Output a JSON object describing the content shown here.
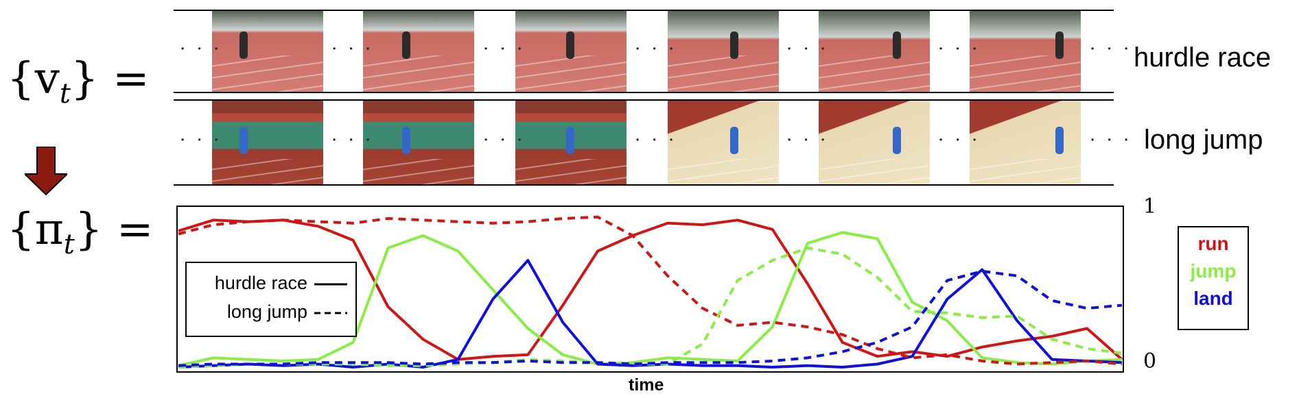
{
  "math": {
    "v_label": "{v",
    "v_sub": "t",
    "v_close": "} =",
    "pi_label": "{π",
    "pi_sub": "t",
    "pi_close": "} ="
  },
  "rows": [
    {
      "label": "hurdle race",
      "theme": "track-red"
    },
    {
      "label": "long jump",
      "theme": "track-green"
    }
  ],
  "ellipsis": "· · ·",
  "chart_data": {
    "type": "line",
    "xlabel": "time",
    "ylim": [
      0,
      1
    ],
    "y_tick_labels": [
      "1",
      "0"
    ],
    "x": [
      0,
      1,
      2,
      3,
      4,
      5,
      6,
      7,
      8,
      9,
      10,
      11,
      12,
      13,
      14,
      15,
      16,
      17,
      18,
      19,
      20,
      21,
      22,
      23,
      24,
      25,
      26,
      27
    ],
    "line_styles": [
      {
        "label": "hurdle race",
        "dash": "solid"
      },
      {
        "label": "long jump",
        "dash": "dashed"
      }
    ],
    "classes": [
      {
        "label": "run",
        "color": "#d11414"
      },
      {
        "label": "jump",
        "color": "#88ee44"
      },
      {
        "label": "land",
        "color": "#1010dd"
      }
    ],
    "series": [
      {
        "cls": "run",
        "dash": "solid",
        "values": [
          0.88,
          0.95,
          0.94,
          0.95,
          0.91,
          0.82,
          0.39,
          0.18,
          0.05,
          0.07,
          0.08,
          0.4,
          0.75,
          0.85,
          0.93,
          0.92,
          0.95,
          0.89,
          0.54,
          0.16,
          0.07,
          0.1,
          0.07,
          0.13,
          0.17,
          0.2,
          0.25,
          0.05
        ]
      },
      {
        "cls": "jump",
        "dash": "solid",
        "values": [
          0.01,
          0.06,
          0.05,
          0.04,
          0.05,
          0.16,
          0.77,
          0.85,
          0.75,
          0.5,
          0.25,
          0.08,
          0.02,
          0.03,
          0.06,
          0.05,
          0.04,
          0.26,
          0.8,
          0.87,
          0.83,
          0.42,
          0.3,
          0.06,
          0.03,
          0.02,
          0.04,
          0.05
        ]
      },
      {
        "cls": "land",
        "dash": "solid",
        "values": [
          0.0,
          0.01,
          0.02,
          0.01,
          0.02,
          0.0,
          0.02,
          0.0,
          0.05,
          0.44,
          0.69,
          0.29,
          0.02,
          0.01,
          0.02,
          0.01,
          0.01,
          0.0,
          0.01,
          0.0,
          0.02,
          0.07,
          0.44,
          0.63,
          0.3,
          0.05,
          0.04,
          0.03
        ]
      },
      {
        "cls": "run",
        "dash": "dashed",
        "values": [
          0.86,
          0.92,
          0.94,
          0.95,
          0.94,
          0.93,
          0.96,
          0.95,
          0.94,
          0.93,
          0.94,
          0.96,
          0.97,
          0.85,
          0.59,
          0.38,
          0.27,
          0.29,
          0.26,
          0.21,
          0.12,
          0.06,
          0.08,
          0.04,
          0.02,
          0.03,
          0.04,
          0.02
        ]
      },
      {
        "cls": "jump",
        "dash": "dashed",
        "values": [
          0.0,
          0.01,
          0.02,
          0.02,
          0.02,
          0.02,
          0.01,
          0.01,
          0.02,
          0.03,
          0.05,
          0.04,
          0.03,
          0.02,
          0.02,
          0.15,
          0.56,
          0.69,
          0.77,
          0.73,
          0.58,
          0.36,
          0.35,
          0.32,
          0.33,
          0.18,
          0.12,
          0.09
        ]
      },
      {
        "cls": "land",
        "dash": "dashed",
        "values": [
          0.01,
          0.02,
          0.02,
          0.02,
          0.03,
          0.03,
          0.03,
          0.02,
          0.03,
          0.03,
          0.04,
          0.03,
          0.03,
          0.02,
          0.03,
          0.03,
          0.03,
          0.04,
          0.06,
          0.1,
          0.16,
          0.26,
          0.56,
          0.62,
          0.59,
          0.43,
          0.38,
          0.4
        ]
      }
    ]
  },
  "colors": {
    "arrow": "#8b1a10",
    "track_red": "#c96a62",
    "track_green": "#3e8a70",
    "sand": "#e8d9b2",
    "sky": "#cfd4d2"
  }
}
